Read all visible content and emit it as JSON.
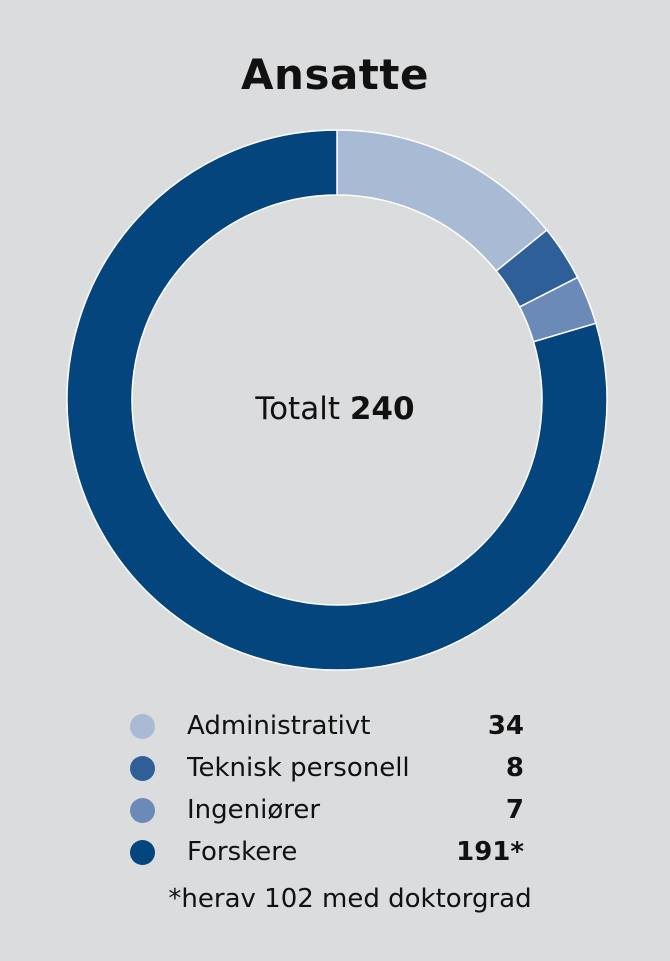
{
  "title": "Ansatte",
  "center": {
    "prefix": "Totalt",
    "total": "240"
  },
  "footnote": "*herav 102 med doktorgrad",
  "chart_data": {
    "type": "pie",
    "donut": true,
    "title": "Ansatte",
    "total": 240,
    "categories": [
      "Administrativt",
      "Teknisk personell",
      "Ingeniører",
      "Forskere"
    ],
    "values": [
      34,
      8,
      7,
      191
    ],
    "value_labels": [
      "34",
      "8",
      "7",
      "191*"
    ],
    "colors": [
      "#a9bad5",
      "#2f5f98",
      "#6b8ab8",
      "#03457c"
    ],
    "legend_position": "bottom",
    "start_angle_deg": 0,
    "direction": "clockwise"
  }
}
